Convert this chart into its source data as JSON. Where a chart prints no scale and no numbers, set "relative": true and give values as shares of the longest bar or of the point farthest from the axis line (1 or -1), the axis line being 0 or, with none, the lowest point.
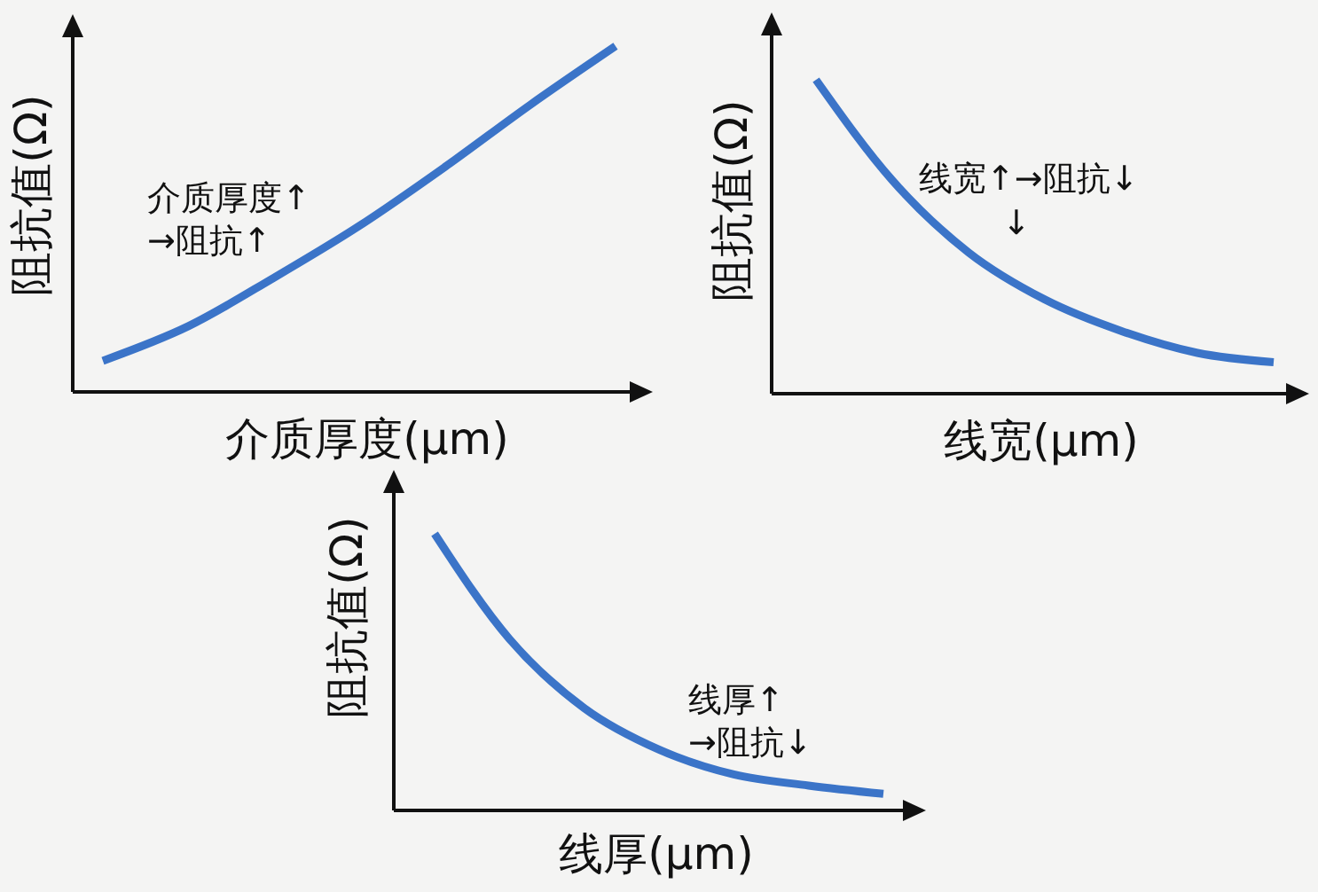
{
  "chart_data": [
    {
      "type": "line",
      "relative": true,
      "xlabel": "介质厚度(μm)",
      "ylabel": "阻抗值(Ω)",
      "categories": [
        null,
        null,
        null,
        null,
        null,
        null,
        null
      ],
      "values": [
        0.09,
        0.19,
        0.33,
        0.48,
        0.65,
        0.83,
        1
      ],
      "color": "#3b74c8",
      "annotations": [
        "介质厚度↑\n→阻抗↑"
      ]
    },
    {
      "type": "line",
      "relative": true,
      "xlabel": "线宽(μm)",
      "ylabel": "阻抗值(Ω)",
      "categories": [
        null,
        null,
        null,
        null,
        null,
        null,
        null
      ],
      "values": [
        1,
        0.68,
        0.45,
        0.3,
        0.2,
        0.13,
        0.1
      ],
      "color": "#3b74c8",
      "annotations": [
        "线宽↑→阻抗↓",
        "↓"
      ]
    },
    {
      "type": "line",
      "relative": true,
      "xlabel": "线厚(μm)",
      "ylabel": "阻抗值(Ω)",
      "categories": [
        null,
        null,
        null,
        null,
        null,
        null,
        null
      ],
      "values": [
        1,
        0.62,
        0.37,
        0.22,
        0.13,
        0.09,
        0.06
      ],
      "color": "#3b74c8",
      "annotations": [
        "线厚↑\n→阻抗↓"
      ]
    }
  ]
}
